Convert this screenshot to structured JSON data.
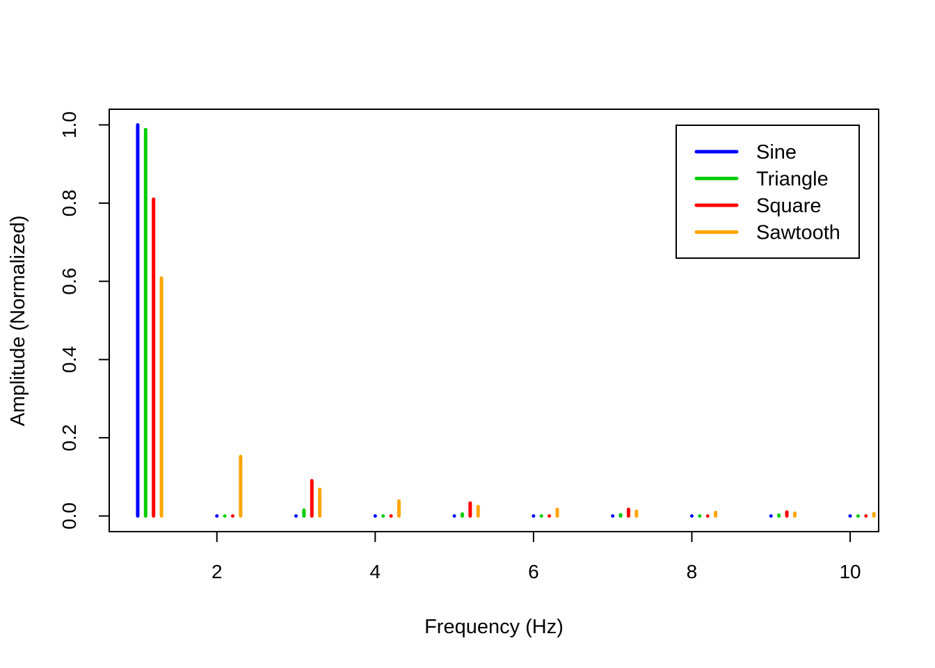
{
  "chart_data": {
    "type": "bar",
    "style": "spike",
    "title": "",
    "xlabel": "Frequency (Hz)",
    "ylabel": "Amplitude (Normalized)",
    "xlim": [
      0.64,
      10.36
    ],
    "ylim": [
      -0.04,
      1.04
    ],
    "xticks": [
      2,
      4,
      6,
      8,
      10
    ],
    "yticks": [
      0.0,
      0.2,
      0.4,
      0.6,
      0.8,
      1.0
    ],
    "xtick_labels": [
      "2",
      "4",
      "6",
      "8",
      "10"
    ],
    "ytick_labels": [
      "0.0",
      "0.2",
      "0.4",
      "0.6",
      "0.8",
      "1.0"
    ],
    "grid": false,
    "legend_position": "top-right",
    "x": [
      1,
      2,
      3,
      4,
      5,
      6,
      7,
      8,
      9,
      10
    ],
    "series": [
      {
        "name": "Sine",
        "color": "#0000ff",
        "offset": 0.0,
        "values": [
          1.0,
          0.0,
          0.0,
          0.0,
          0.0,
          0.0,
          0.0,
          0.0,
          0.0,
          0.0
        ]
      },
      {
        "name": "Triangle",
        "color": "#00cd00",
        "offset": 0.1,
        "values": [
          0.988,
          0.0,
          0.015,
          0.0,
          0.005,
          0.0,
          0.003,
          0.0,
          0.002,
          0.0
        ]
      },
      {
        "name": "Square",
        "color": "#ff0000",
        "offset": 0.2,
        "values": [
          0.81,
          0.0,
          0.09,
          0.0,
          0.033,
          0.0,
          0.017,
          0.0,
          0.01,
          0.0
        ]
      },
      {
        "name": "Sawtooth",
        "color": "#ffa500",
        "offset": 0.3,
        "values": [
          0.608,
          0.152,
          0.068,
          0.038,
          0.024,
          0.017,
          0.012,
          0.009,
          0.007,
          0.006
        ]
      }
    ]
  }
}
